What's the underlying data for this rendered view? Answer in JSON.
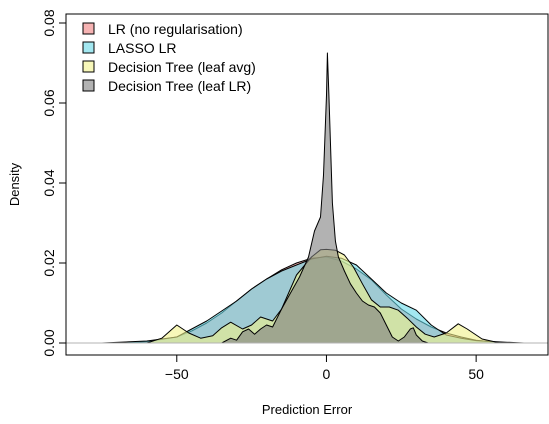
{
  "chart_data": {
    "type": "area",
    "xlabel": "Prediction Error",
    "ylabel": "Density",
    "xlim": [
      -85,
      72
    ],
    "ylim": [
      0,
      0.08
    ],
    "x_ticks": [
      -50,
      0,
      50
    ],
    "x_tick_labels": [
      "−50",
      "0",
      "50"
    ],
    "y_ticks": [
      0.0,
      0.02,
      0.04,
      0.06,
      0.08
    ],
    "y_tick_labels": [
      "0.00",
      "0.02",
      "0.04",
      "0.06",
      "0.08"
    ],
    "grid": false,
    "legend_position": "top-left",
    "series": [
      {
        "name": "LR (no regularisation)",
        "color": "#f08080",
        "points": [
          [
            -70,
            0
          ],
          [
            -60,
            0.0003
          ],
          [
            -50,
            0.0015
          ],
          [
            -45,
            0.003
          ],
          [
            -40,
            0.005
          ],
          [
            -35,
            0.0075
          ],
          [
            -30,
            0.0105
          ],
          [
            -25,
            0.0135
          ],
          [
            -20,
            0.016
          ],
          [
            -15,
            0.0183
          ],
          [
            -10,
            0.02
          ],
          [
            -5,
            0.0212
          ],
          [
            0,
            0.0215
          ],
          [
            5,
            0.0205
          ],
          [
            10,
            0.0185
          ],
          [
            15,
            0.0158
          ],
          [
            20,
            0.012
          ],
          [
            25,
            0.0085
          ],
          [
            30,
            0.006
          ],
          [
            35,
            0.004
          ],
          [
            40,
            0.0025
          ],
          [
            45,
            0.0015
          ],
          [
            50,
            0.0007
          ],
          [
            55,
            0.0003
          ],
          [
            62,
            0
          ]
        ]
      },
      {
        "name": "LASSO LR",
        "color": "#66d9e8",
        "points": [
          [
            -75,
            0
          ],
          [
            -60,
            0.0005
          ],
          [
            -50,
            0.0015
          ],
          [
            -45,
            0.0035
          ],
          [
            -40,
            0.0055
          ],
          [
            -35,
            0.008
          ],
          [
            -30,
            0.0105
          ],
          [
            -25,
            0.0135
          ],
          [
            -20,
            0.016
          ],
          [
            -15,
            0.018
          ],
          [
            -10,
            0.0195
          ],
          [
            -5,
            0.021
          ],
          [
            0,
            0.0217
          ],
          [
            5,
            0.0212
          ],
          [
            10,
            0.0195
          ],
          [
            15,
            0.016
          ],
          [
            20,
            0.0125
          ],
          [
            25,
            0.01
          ],
          [
            30,
            0.0082
          ],
          [
            35,
            0.0045
          ],
          [
            40,
            0.002
          ],
          [
            45,
            0.0012
          ],
          [
            50,
            0.0006
          ],
          [
            60,
            0.0002
          ],
          [
            66,
            0
          ]
        ]
      },
      {
        "name": "Decision Tree (leaf avg)",
        "color": "#f2f28a",
        "points": [
          [
            -60,
            0
          ],
          [
            -55,
            0.0012
          ],
          [
            -50,
            0.0045
          ],
          [
            -46,
            0.0025
          ],
          [
            -42,
            0.0012
          ],
          [
            -38,
            0.0018
          ],
          [
            -35,
            0.0038
          ],
          [
            -32,
            0.0052
          ],
          [
            -28,
            0.0035
          ],
          [
            -25,
            0.0045
          ],
          [
            -22,
            0.0065
          ],
          [
            -18,
            0.0055
          ],
          [
            -15,
            0.0085
          ],
          [
            -10,
            0.017
          ],
          [
            -5,
            0.0215
          ],
          [
            -2,
            0.0233
          ],
          [
            0,
            0.0234
          ],
          [
            3,
            0.0232
          ],
          [
            6,
            0.022
          ],
          [
            9,
            0.019
          ],
          [
            12,
            0.0148
          ],
          [
            15,
            0.0108
          ],
          [
            18,
            0.009
          ],
          [
            21,
            0.009
          ],
          [
            24,
            0.0082
          ],
          [
            27,
            0.0062
          ],
          [
            30,
            0.004
          ],
          [
            33,
            0.0022
          ],
          [
            36,
            0.0015
          ],
          [
            40,
            0.0025
          ],
          [
            44,
            0.0048
          ],
          [
            47,
            0.0035
          ],
          [
            52,
            0.001
          ],
          [
            58,
            0
          ]
        ]
      },
      {
        "name": "Decision Tree (leaf LR)",
        "color": "#7f7f7f",
        "points": [
          [
            -35,
            0
          ],
          [
            -32,
            0.0012
          ],
          [
            -30,
            0.0007
          ],
          [
            -28,
            0.0028
          ],
          [
            -26,
            0.0035
          ],
          [
            -24,
            0.0022
          ],
          [
            -22,
            0.0035
          ],
          [
            -20,
            0.0045
          ],
          [
            -18,
            0.004
          ],
          [
            -15,
            0.0085
          ],
          [
            -12,
            0.0125
          ],
          [
            -9,
            0.0165
          ],
          [
            -6,
            0.0215
          ],
          [
            -4,
            0.028
          ],
          [
            -2,
            0.0315
          ],
          [
            -1,
            0.042
          ],
          [
            0,
            0.062
          ],
          [
            0.3,
            0.0725
          ],
          [
            0.8,
            0.062
          ],
          [
            2,
            0.035
          ],
          [
            3,
            0.0255
          ],
          [
            4,
            0.0215
          ],
          [
            6,
            0.018
          ],
          [
            8,
            0.0148
          ],
          [
            10,
            0.0125
          ],
          [
            12,
            0.0105
          ],
          [
            14,
            0.0095
          ],
          [
            16,
            0.009
          ],
          [
            18,
            0.0075
          ],
          [
            20,
            0.0045
          ],
          [
            22,
            0.0015
          ],
          [
            24,
            0.0005
          ],
          [
            26,
            0.0015
          ],
          [
            28,
            0.0035
          ],
          [
            29,
            0.0038
          ],
          [
            30,
            0.002
          ],
          [
            32,
            0.0005
          ],
          [
            34,
            0
          ]
        ]
      }
    ]
  }
}
